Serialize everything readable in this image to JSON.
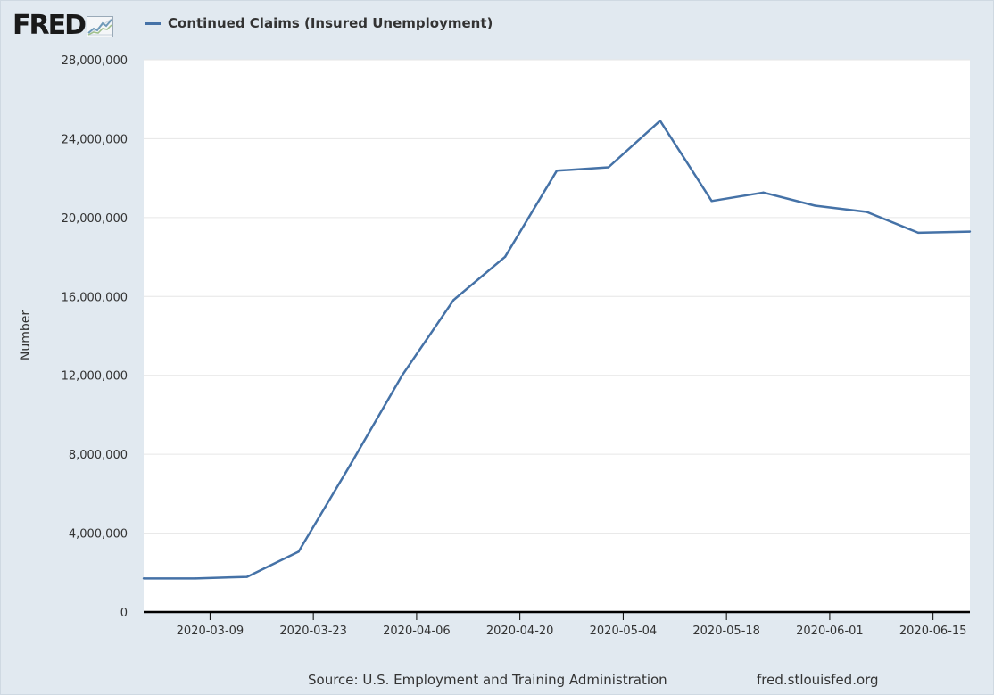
{
  "branding": {
    "logo_text": "FRED",
    "logo_icon": "chart-line-icon"
  },
  "footer": {
    "source": "Source: U.S. Employment and Training Administration",
    "url": "fred.stlouisfed.org"
  },
  "colors": {
    "series": "#4572a7",
    "background": "#e1e9f0",
    "plot_background": "#ffffff",
    "grid": "#e6e6e6"
  },
  "chart_data": {
    "type": "line",
    "title": "",
    "xlabel": "",
    "ylabel": "Number",
    "ylim": [
      0,
      28000000
    ],
    "grid": true,
    "legend_position": "top-left",
    "y_ticks": [
      0,
      4000000,
      8000000,
      12000000,
      16000000,
      20000000,
      24000000,
      28000000
    ],
    "y_tick_labels": [
      "0",
      "4,000,000",
      "8,000,000",
      "12,000,000",
      "16,000,000",
      "20,000,000",
      "24,000,000",
      "28,000,000"
    ],
    "x_tick_labels": [
      "2020-03-09",
      "2020-03-23",
      "2020-04-06",
      "2020-04-20",
      "2020-05-04",
      "2020-05-18",
      "2020-06-01",
      "2020-06-15"
    ],
    "x_range": [
      "2020-02-29",
      "2020-06-20"
    ],
    "series": [
      {
        "name": "Continued Claims (Insured Unemployment)",
        "x": [
          "2020-02-29",
          "2020-03-07",
          "2020-03-14",
          "2020-03-21",
          "2020-03-28",
          "2020-04-04",
          "2020-04-11",
          "2020-04-18",
          "2020-04-25",
          "2020-05-02",
          "2020-05-09",
          "2020-05-16",
          "2020-05-23",
          "2020-05-30",
          "2020-06-06",
          "2020-06-13",
          "2020-06-20"
        ],
        "values": [
          1703000,
          1702000,
          1784000,
          3059000,
          7455000,
          11976000,
          15819000,
          18011000,
          22377000,
          22548000,
          24912000,
          20838000,
          21268000,
          20606000,
          20289000,
          19231000,
          19290000
        ]
      }
    ]
  }
}
